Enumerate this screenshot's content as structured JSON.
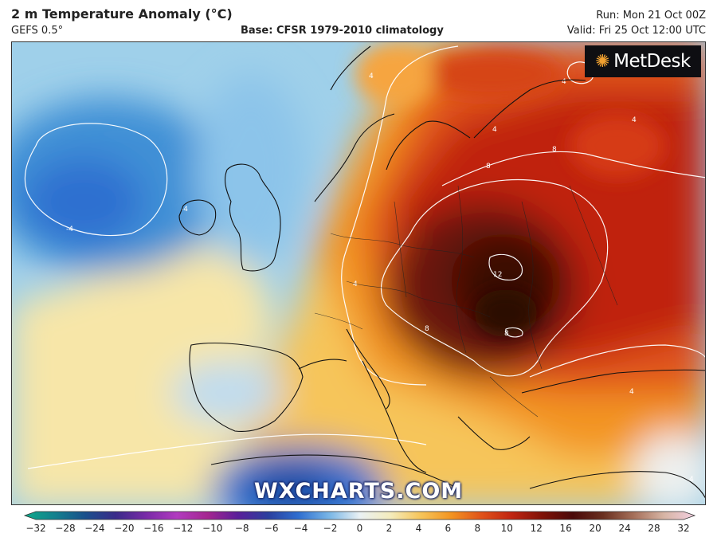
{
  "header": {
    "title": "2 m Temperature Anomaly (°C)",
    "model": "GEFS 0.5°",
    "base": "Base: CFSR 1979-2010 climatology",
    "run": "Run: Mon 21 Oct 00Z",
    "valid": "Valid: Fri 25 Oct 12:00 UTC"
  },
  "logo": {
    "text": "MetDesk",
    "accent_color": "#f0a030"
  },
  "watermark": "WXCHARTS.COM",
  "map": {
    "contour_labels": [
      "-4",
      "-4",
      "4",
      "4",
      "4",
      "4",
      "8",
      "8",
      "12",
      "8",
      "8",
      "4",
      "4",
      "4"
    ]
  },
  "colorbar": {
    "labels": [
      "-32",
      "-28",
      "-24",
      "-20",
      "-16",
      "-12",
      "-10",
      "-8",
      "-6",
      "-4",
      "-2",
      "0",
      "2",
      "4",
      "6",
      "8",
      "10",
      "12",
      "16",
      "20",
      "24",
      "28",
      "32"
    ],
    "colors": [
      "#0fa98a",
      "#13808e",
      "#1a4f8c",
      "#3a2a8a",
      "#7a2aa8",
      "#b13bbf",
      "#a52590",
      "#5a1f9a",
      "#2a3f9e",
      "#2f6fd0",
      "#79b6e6",
      "#eaf1f4",
      "#f4ecbd",
      "#f6c55a",
      "#f39421",
      "#e0521a",
      "#c02411",
      "#7f1207",
      "#4a0a0a",
      "#6a3020",
      "#a6705a",
      "#d7b5a5",
      "#f2cfe0"
    ]
  }
}
